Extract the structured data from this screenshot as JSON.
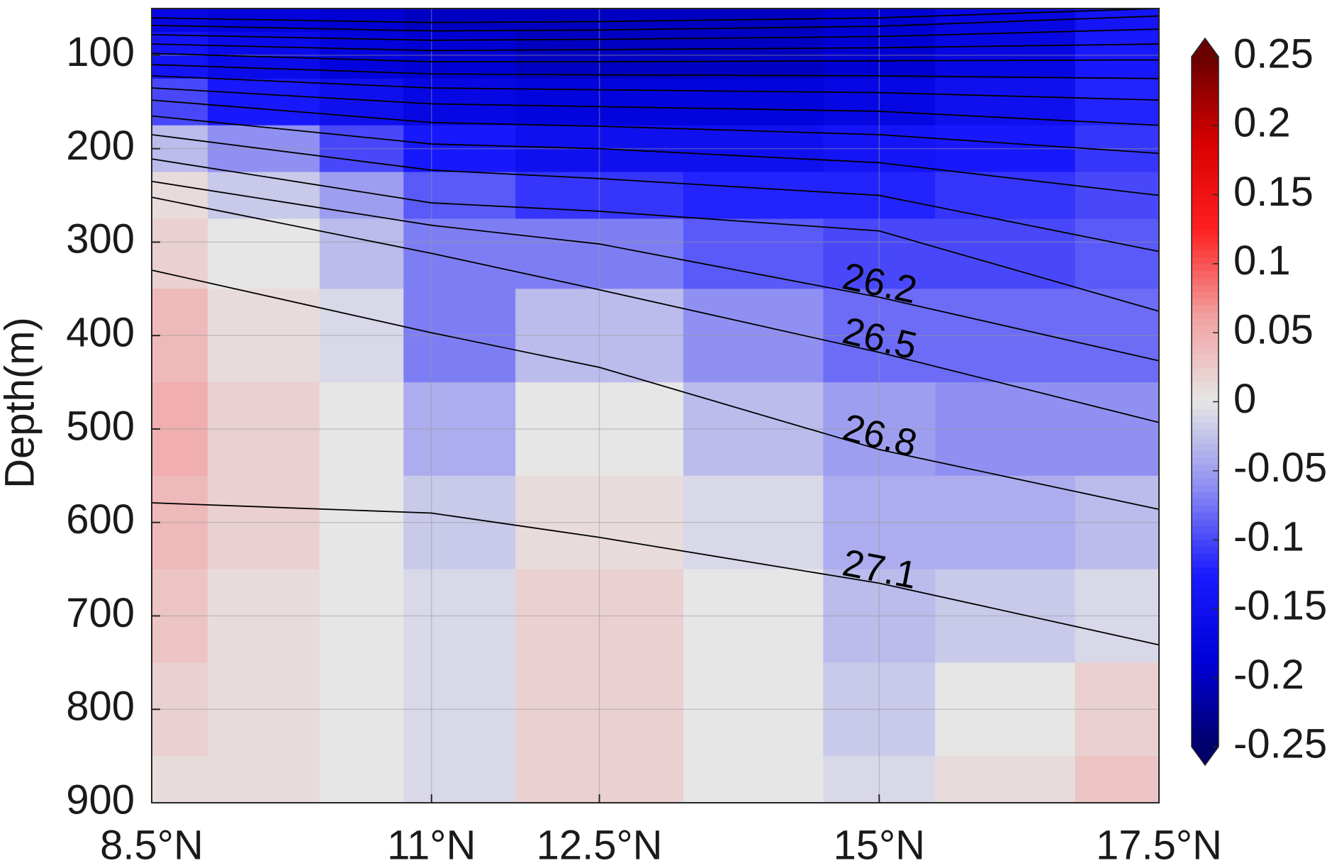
{
  "chart_data": {
    "type": "contour",
    "ylabel": "Depth(m)",
    "xlim": [
      8.5,
      17.5
    ],
    "xticks": [
      {
        "value": 8.5,
        "label": "8.5°N"
      },
      {
        "value": 11,
        "label": "11°N"
      },
      {
        "value": 12.5,
        "label": "12.5°N"
      },
      {
        "value": 15,
        "label": "15°N"
      },
      {
        "value": 17.5,
        "label": "17.5°N"
      }
    ],
    "ylim": [
      50,
      900
    ],
    "yticks": [
      100,
      200,
      300,
      400,
      500,
      600,
      700,
      800,
      900
    ],
    "y_reversed": true,
    "grid": true,
    "field": {
      "x": [
        8.5,
        9.5,
        10.5,
        11,
        12.5,
        14,
        15,
        16,
        17.5
      ],
      "depth": [
        50,
        100,
        150,
        200,
        250,
        300,
        400,
        500,
        600,
        700,
        800,
        900
      ],
      "values": [
        [
          -0.17,
          -0.18,
          -0.19,
          -0.2,
          -0.2,
          -0.2,
          -0.19,
          -0.17,
          -0.14
        ],
        [
          -0.14,
          -0.16,
          -0.18,
          -0.19,
          -0.2,
          -0.2,
          -0.19,
          -0.17,
          -0.13
        ],
        [
          -0.1,
          -0.13,
          -0.15,
          -0.17,
          -0.18,
          -0.18,
          -0.17,
          -0.15,
          -0.12
        ],
        [
          -0.03,
          -0.06,
          -0.1,
          -0.13,
          -0.15,
          -0.15,
          -0.14,
          -0.13,
          -0.11
        ],
        [
          0.01,
          -0.02,
          -0.05,
          -0.09,
          -0.11,
          -0.12,
          -0.12,
          -0.11,
          -0.1
        ],
        [
          0.02,
          0.0,
          -0.03,
          -0.07,
          -0.07,
          -0.09,
          -0.1,
          -0.1,
          -0.09
        ],
        [
          0.04,
          0.01,
          -0.01,
          -0.07,
          -0.03,
          -0.06,
          -0.08,
          -0.08,
          -0.08
        ],
        [
          0.05,
          0.02,
          0.0,
          -0.04,
          0.0,
          -0.03,
          -0.05,
          -0.06,
          -0.06
        ],
        [
          0.04,
          0.02,
          0.0,
          -0.02,
          0.01,
          -0.01,
          -0.04,
          -0.04,
          -0.03
        ],
        [
          0.03,
          0.01,
          0.0,
          -0.01,
          0.02,
          0.0,
          -0.03,
          -0.02,
          -0.01
        ],
        [
          0.02,
          0.01,
          0.0,
          -0.01,
          0.02,
          0.0,
          -0.02,
          0.0,
          0.02
        ],
        [
          0.01,
          0.01,
          0.0,
          -0.01,
          0.02,
          0.0,
          -0.01,
          0.01,
          0.03
        ]
      ]
    },
    "colorbar": {
      "lim": [
        -0.25,
        0.25
      ],
      "ticks": [
        -0.25,
        -0.2,
        -0.15,
        -0.1,
        -0.05,
        0,
        0.05,
        0.1,
        0.15,
        0.2,
        0.25
      ],
      "colors": [
        "#00006a",
        "#0000d8",
        "#1a1aff",
        "#8c8cf2",
        "#e6e6e6",
        "#f2a0a0",
        "#ff2020",
        "#d80000",
        "#6a0000"
      ]
    },
    "contour_color": "#000000",
    "contour_x": [
      8.5,
      11,
      12.5,
      15,
      17.5
    ],
    "contours": [
      {
        "depth": [
          60,
          65,
          64,
          60,
          50
        ]
      },
      {
        "depth": [
          68,
          74,
          73,
          69,
          58
        ]
      },
      {
        "depth": [
          78,
          84,
          83,
          80,
          72
        ]
      },
      {
        "depth": [
          88,
          95,
          94,
          92,
          88
        ]
      },
      {
        "depth": [
          98,
          107,
          107,
          106,
          105
        ]
      },
      {
        "depth": [
          110,
          120,
          121,
          122,
          125
        ]
      },
      {
        "depth": [
          122,
          135,
          137,
          140,
          148
        ]
      },
      {
        "depth": [
          135,
          152,
          155,
          160,
          175
        ]
      },
      {
        "depth": [
          148,
          172,
          176,
          185,
          205
        ]
      },
      {
        "depth": [
          165,
          195,
          200,
          215,
          250
        ]
      },
      {
        "depth": [
          185,
          223,
          232,
          250,
          310
        ]
      },
      {
        "depth": [
          211,
          258,
          267,
          288,
          374
        ]
      },
      {
        "name": "26.2",
        "depth": [
          235,
          282,
          302,
          359,
          427
        ]
      },
      {
        "name": "26.5",
        "depth": [
          252,
          312,
          351,
          418,
          493
        ]
      },
      {
        "name": "26.8",
        "depth": [
          330,
          397,
          434,
          522,
          586
        ]
      },
      {
        "name": "27.1",
        "depth": [
          579,
          590,
          616,
          665,
          731
        ]
      }
    ],
    "contour_label_x": 15
  }
}
